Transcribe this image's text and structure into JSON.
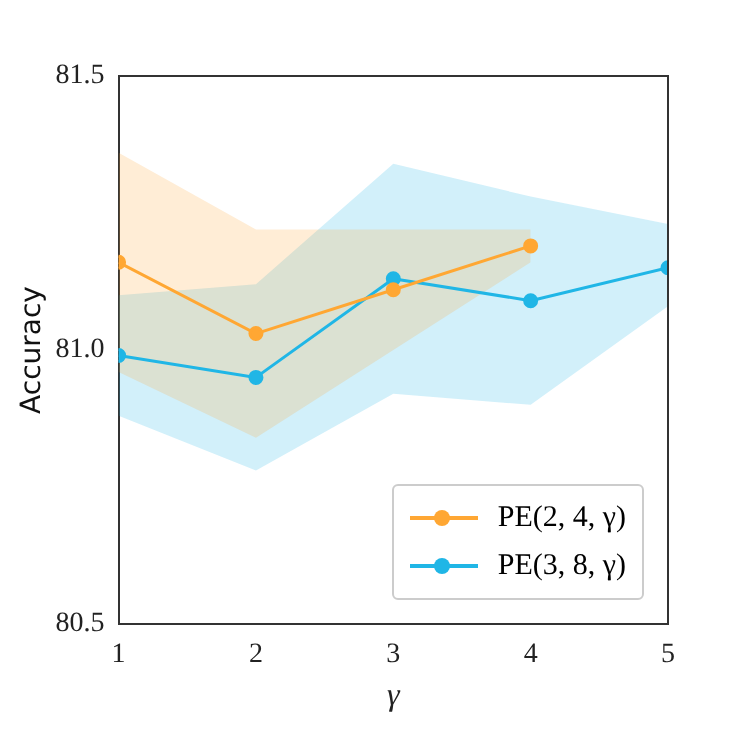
{
  "chart_data": {
    "type": "line",
    "xlabel": "γ",
    "ylabel": "Accuracy",
    "x": [
      1,
      2,
      3,
      4,
      5
    ],
    "series": [
      {
        "name": "PE(2, 4, γ)",
        "color": "#ffa733",
        "values": [
          81.16,
          81.03,
          81.11,
          81.19,
          null
        ],
        "lower": [
          80.96,
          80.84,
          81.0,
          81.16,
          null
        ],
        "upper": [
          81.36,
          81.22,
          81.22,
          81.22,
          null
        ]
      },
      {
        "name": "PE(3, 8, γ)",
        "color": "#20b6e6",
        "values": [
          80.99,
          80.95,
          81.13,
          81.09,
          81.15
        ],
        "lower": [
          80.88,
          80.78,
          80.92,
          80.9,
          81.08
        ],
        "upper": [
          81.1,
          81.12,
          81.34,
          81.28,
          81.23
        ]
      }
    ],
    "xlim": [
      1,
      5
    ],
    "xticks": [
      1,
      2,
      3,
      4,
      5
    ],
    "ylim": [
      80.5,
      81.5
    ],
    "yticks": [
      80.5,
      {
        "value": 81,
        "label": "81.0"
      },
      81.5
    ],
    "grid": false,
    "legend": "bottom right",
    "marker": "circle",
    "line_style": "solid"
  }
}
